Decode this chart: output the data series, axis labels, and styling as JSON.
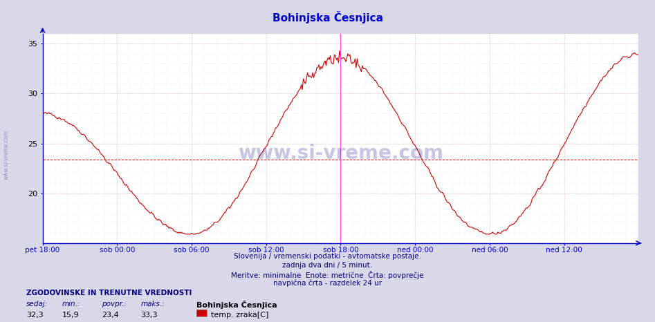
{
  "title": "Bohinjska Česnjica",
  "title_color": "#0000cc",
  "bg_color": "#d8d8e8",
  "plot_bg_color": "#ffffff",
  "line_color": "#cc0000",
  "line_width": 0.8,
  "avg_line_color": "#cc0000",
  "avg_line_style": "--",
  "avg_value": 23.4,
  "ylim": [
    15,
    36
  ],
  "yticks": [
    20,
    25,
    30,
    35
  ],
  "axis_color": "#0000cc",
  "grid_color_v": "#ddaaaa",
  "grid_color_h": "#ddaaaa",
  "xtick_labels": [
    "pet 18:00",
    "sob 00:00",
    "sob 06:00",
    "sob 12:00",
    "sob 18:00",
    "ned 00:00",
    "ned 06:00",
    "ned 12:00"
  ],
  "xtick_positions": [
    0,
    72,
    144,
    216,
    288,
    360,
    432,
    504
  ],
  "total_points": 577,
  "vline_positions": [
    288,
    576
  ],
  "vline_color": "#ff44ff",
  "footer_line1": "Slovenija / vremenski podatki - avtomatske postaje.",
  "footer_line2": "zadnja dva dni / 5 minut.",
  "footer_line3": "Meritve: minimalne  Enote: metrične  Črta: povprečje",
  "footer_line4": "navpična črta - razdelek 24 ur",
  "footer_color": "#000080",
  "stats_label": "ZGODOVINSKE IN TRENUTNE VREDNOSTI",
  "stat_sedaj": "32,3",
  "stat_min": "15,9",
  "stat_povpr": "23,4",
  "stat_maks": "33,3",
  "station_name": "Bohinjska Česnjica",
  "legend_label": "temp. zraka[C]",
  "legend_color": "#cc0000",
  "watermark_text": "www.si-vreme.com",
  "watermark_color": "#000080",
  "watermark_alpha": 0.22
}
